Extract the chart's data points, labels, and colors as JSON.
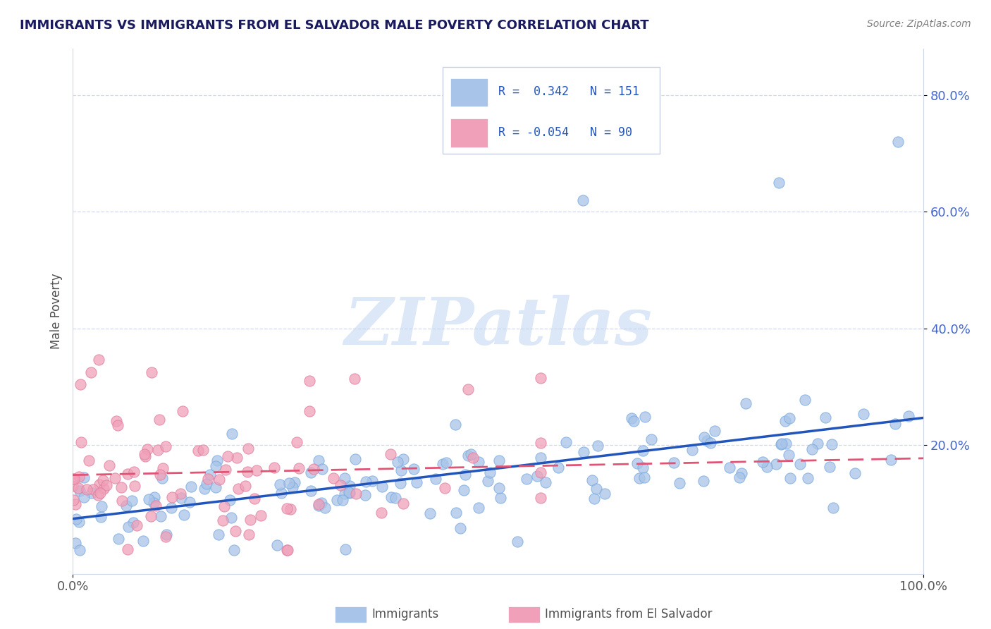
{
  "title": "IMMIGRANTS VS IMMIGRANTS FROM EL SALVADOR MALE POVERTY CORRELATION CHART",
  "source_text": "Source: ZipAtlas.com",
  "xlabel": "",
  "ylabel": "Male Poverty",
  "x_ticklabels": [
    "0.0%",
    "100.0%"
  ],
  "y_ticklabels": [
    "20.0%",
    "40.0%",
    "60.0%",
    "80.0%"
  ],
  "xlim": [
    0,
    1
  ],
  "ylim": [
    -0.02,
    0.88
  ],
  "blue_color": "#a8c4e8",
  "pink_color": "#f0a0b8",
  "blue_line_color": "#2255bb",
  "pink_line_color": "#e05575",
  "title_color": "#1a1a5e",
  "axis_label_color": "#505050",
  "tick_color": "#4466cc",
  "source_color": "#808080",
  "background_color": "#ffffff",
  "watermark_text": "ZIPatlas",
  "legend_border_color": "#c8d0e0",
  "grid_color": "#d0d8e8"
}
